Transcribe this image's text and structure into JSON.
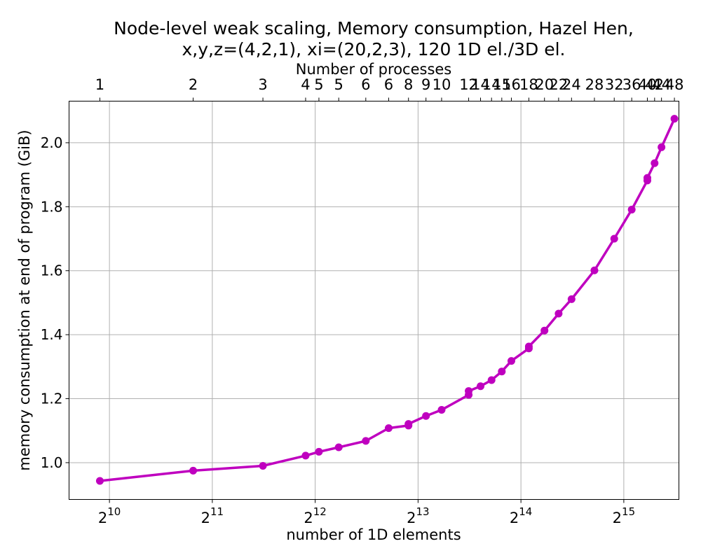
{
  "chart_data": {
    "type": "line",
    "title": "Node-level weak scaling, Memory consumption, Hazel Hen,",
    "subtitle": "x,y,z=(4,2,1), xi=(20,2,3), 120 1D el./3D el.",
    "xlabel": "number of 1D elements",
    "ylabel": "memory consumption at end of program (GiB)",
    "top_xlabel": "Number of processes",
    "x_scale": "log2",
    "xlim": [
      780,
      47500
    ],
    "ylim": [
      0.885,
      2.13
    ],
    "grid": true,
    "color": "#bf00bf",
    "x_ticks": [
      {
        "value": 1024,
        "base": "2",
        "exp": "10"
      },
      {
        "value": 2048,
        "base": "2",
        "exp": "11"
      },
      {
        "value": 4096,
        "base": "2",
        "exp": "12"
      },
      {
        "value": 8192,
        "base": "2",
        "exp": "13"
      },
      {
        "value": 16384,
        "base": "2",
        "exp": "14"
      },
      {
        "value": 32768,
        "base": "2",
        "exp": "15"
      }
    ],
    "y_ticks": [
      {
        "value": 1.0,
        "label": "1.0"
      },
      {
        "value": 1.2,
        "label": "1.2"
      },
      {
        "value": 1.4,
        "label": "1.4"
      },
      {
        "value": 1.6,
        "label": "1.6"
      },
      {
        "value": 1.8,
        "label": "1.8"
      },
      {
        "value": 2.0,
        "label": "2.0"
      }
    ],
    "top_ticks": [
      {
        "x": 960,
        "label": "1"
      },
      {
        "x": 1800,
        "label": "2"
      },
      {
        "x": 2880,
        "label": "3"
      },
      {
        "x": 3840,
        "label": "4"
      },
      {
        "x": 4200,
        "label": "5"
      },
      {
        "x": 4800,
        "label": "5"
      },
      {
        "x": 5760,
        "label": "6"
      },
      {
        "x": 6720,
        "label": "6"
      },
      {
        "x": 7680,
        "label": "8"
      },
      {
        "x": 8640,
        "label": "9"
      },
      {
        "x": 9600,
        "label": "10"
      },
      {
        "x": 11520,
        "label": "12"
      },
      {
        "x": 12480,
        "label": "14"
      },
      {
        "x": 13440,
        "label": "14"
      },
      {
        "x": 14400,
        "label": "15"
      },
      {
        "x": 15360,
        "label": "16"
      },
      {
        "x": 17280,
        "label": "18"
      },
      {
        "x": 19200,
        "label": "20"
      },
      {
        "x": 21120,
        "label": "22"
      },
      {
        "x": 23040,
        "label": "24"
      },
      {
        "x": 26880,
        "label": "28"
      },
      {
        "x": 30720,
        "label": "32"
      },
      {
        "x": 34560,
        "label": "36"
      },
      {
        "x": 38400,
        "label": "40"
      },
      {
        "x": 40320,
        "label": "42"
      },
      {
        "x": 42240,
        "label": "44"
      },
      {
        "x": 46080,
        "label": "48"
      }
    ],
    "points": [
      {
        "x": 960,
        "y": 0.943
      },
      {
        "x": 1800,
        "y": 0.975
      },
      {
        "x": 2880,
        "y": 0.99
      },
      {
        "x": 3840,
        "y": 1.022
      },
      {
        "x": 4200,
        "y": 1.034
      },
      {
        "x": 4800,
        "y": 1.048
      },
      {
        "x": 5760,
        "y": 1.068
      },
      {
        "x": 6720,
        "y": 1.108
      },
      {
        "x": 7680,
        "y": 1.116
      },
      {
        "x": 7680,
        "y": 1.121
      },
      {
        "x": 8640,
        "y": 1.146
      },
      {
        "x": 9600,
        "y": 1.165
      },
      {
        "x": 11520,
        "y": 1.212
      },
      {
        "x": 11520,
        "y": 1.224
      },
      {
        "x": 12480,
        "y": 1.239
      },
      {
        "x": 13440,
        "y": 1.258
      },
      {
        "x": 14400,
        "y": 1.285
      },
      {
        "x": 15360,
        "y": 1.318
      },
      {
        "x": 17280,
        "y": 1.357
      },
      {
        "x": 17280,
        "y": 1.363
      },
      {
        "x": 19200,
        "y": 1.413
      },
      {
        "x": 21120,
        "y": 1.466
      },
      {
        "x": 23040,
        "y": 1.511
      },
      {
        "x": 26880,
        "y": 1.601
      },
      {
        "x": 30720,
        "y": 1.7
      },
      {
        "x": 34560,
        "y": 1.791
      },
      {
        "x": 38400,
        "y": 1.882
      },
      {
        "x": 38400,
        "y": 1.89
      },
      {
        "x": 40320,
        "y": 1.936
      },
      {
        "x": 42240,
        "y": 1.986
      },
      {
        "x": 46080,
        "y": 2.075
      }
    ]
  }
}
